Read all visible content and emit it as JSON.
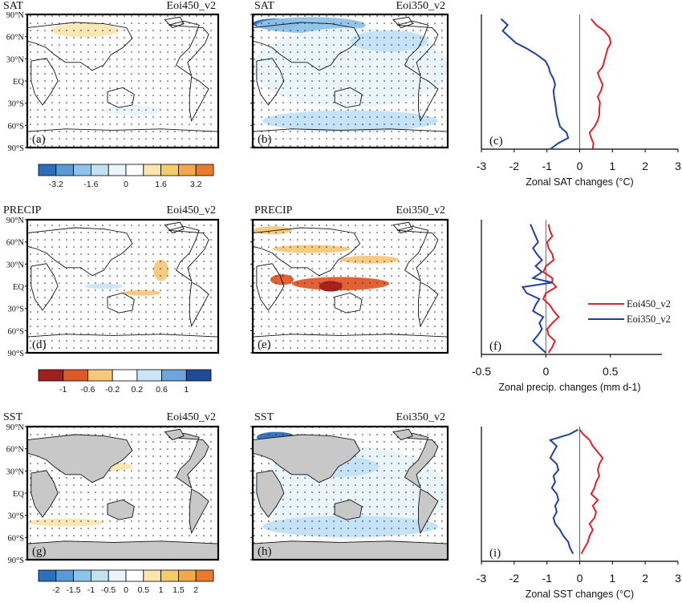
{
  "panels": [
    {
      "id": "a",
      "label": "(a)",
      "variable": "SAT",
      "experiment": "Eoi450_v2"
    },
    {
      "id": "b",
      "label": "(b)",
      "variable": "SAT",
      "experiment": "Eoi350_v2"
    },
    {
      "id": "d",
      "label": "(d)",
      "variable": "PRECIP",
      "experiment": "Eoi450_v2"
    },
    {
      "id": "e",
      "label": "(e)",
      "variable": "PRECIP",
      "experiment": "Eoi350_v2"
    },
    {
      "id": "g",
      "label": "(g)",
      "variable": "SST",
      "experiment": "Eoi450_v2"
    },
    {
      "id": "h",
      "label": "(h)",
      "variable": "SST",
      "experiment": "Eoi350_v2"
    }
  ],
  "latitude_ticks": [
    "90°N",
    "60°N",
    "30°N",
    "EQ",
    "30°S",
    "60°S",
    "90°S"
  ],
  "colorbars": [
    {
      "name": "sat",
      "labels": [
        "-3.2",
        "-1.6",
        "0",
        "1.6",
        "3.2"
      ],
      "colors": [
        "#2c6fbb",
        "#5b9bd5",
        "#8ec3ea",
        "#c3e0f5",
        "#e9f4fb",
        "#ffffff",
        "#fbe6b0",
        "#f6cc6a",
        "#f2a94a",
        "#ea7a2e"
      ]
    },
    {
      "name": "precip",
      "labels": [
        "-1",
        "-0.6",
        "-0.2",
        "0.2",
        "0.6",
        "1"
      ],
      "colors": [
        "#a31e1e",
        "#e0582a",
        "#f7c77a",
        "#ffffff",
        "#cbe4f6",
        "#6ea6dc",
        "#1f4a9c"
      ]
    },
    {
      "name": "sst",
      "labels": [
        "-2",
        "-1.5",
        "-1",
        "-0.5",
        "0",
        "0.5",
        "1",
        "1.5",
        "2"
      ],
      "colors": [
        "#2c6fbb",
        "#5b9bd5",
        "#8ec3ea",
        "#c3e0f5",
        "#e9f4fb",
        "#ffffff",
        "#fbe6b0",
        "#f6cc6a",
        "#f2a94a",
        "#ea7a2e"
      ]
    }
  ],
  "legend": {
    "entries": [
      {
        "name": "Eoi450_v2",
        "color": "#e0202a"
      },
      {
        "name": "Eoi350_v2",
        "color": "#2040a0"
      }
    ]
  },
  "chart_data": [
    {
      "type": "line",
      "panel": "(c)",
      "xlabel": "Zonal SAT changes (°C)",
      "ylabel": "",
      "xlim": [
        -3,
        3
      ],
      "ylim": [
        -90,
        90
      ],
      "xticks": [
        "-3",
        "-2",
        "-1",
        "0",
        "1",
        "2",
        "3"
      ],
      "series": [
        {
          "name": "Eoi450_v2",
          "color": "#e0202a",
          "x": [
            0.4,
            0.42,
            0.35,
            0.3,
            0.45,
            0.55,
            0.6,
            0.6,
            0.62,
            0.55,
            0.65,
            0.7,
            0.62,
            0.55,
            0.7,
            0.75,
            0.8,
            0.85,
            0.95,
            0.9,
            0.75,
            0.5,
            0.35
          ],
          "y": [
            -90,
            -82,
            -75,
            -68,
            -60,
            -52,
            -44,
            -36,
            -28,
            -20,
            -12,
            -4,
            4,
            12,
            20,
            28,
            36,
            44,
            52,
            60,
            68,
            76,
            84
          ]
        },
        {
          "name": "Eoi350_v2",
          "color": "#2040a0",
          "x": [
            -0.9,
            -0.65,
            -0.35,
            -0.4,
            -0.6,
            -0.65,
            -0.7,
            -0.72,
            -0.75,
            -0.78,
            -0.8,
            -0.75,
            -0.8,
            -0.9,
            -0.95,
            -1.05,
            -1.3,
            -1.6,
            -1.95,
            -2.15,
            -2.35,
            -2.2,
            -2.4
          ],
          "y": [
            -90,
            -82,
            -75,
            -68,
            -60,
            -52,
            -44,
            -36,
            -28,
            -20,
            -12,
            -4,
            4,
            12,
            20,
            28,
            36,
            44,
            52,
            60,
            68,
            76,
            84
          ]
        }
      ]
    },
    {
      "type": "line",
      "panel": "(f)",
      "xlabel": "Zonal precip. changes (mm d-1)",
      "ylabel": "",
      "xlim": [
        -0.5,
        0.9
      ],
      "ylim": [
        -90,
        90
      ],
      "xticks": [
        "-0.5",
        "0",
        "0.5"
      ],
      "series": [
        {
          "name": "Eoi450_v2",
          "color": "#e0202a",
          "x": [
            0.02,
            0.05,
            0.07,
            0.02,
            0.01,
            0.05,
            0.1,
            0.06,
            0.03,
            -0.02,
            0.0,
            0.08,
            0.05,
            0.05,
            -0.02,
            0.0,
            0.06,
            0.05,
            0.02,
            0.01,
            0.05,
            0.03,
            0.02
          ],
          "y": [
            -88,
            -80,
            -72,
            -64,
            -56,
            -48,
            -40,
            -32,
            -24,
            -16,
            -8,
            0,
            6,
            12,
            20,
            28,
            36,
            44,
            52,
            60,
            68,
            76,
            84
          ]
        },
        {
          "name": "Eoi350_v2",
          "color": "#2040a0",
          "x": [
            0.0,
            -0.05,
            -0.1,
            -0.06,
            -0.03,
            -0.05,
            -0.02,
            -0.1,
            -0.08,
            -0.05,
            -0.15,
            -0.18,
            0.05,
            -0.1,
            -0.03,
            -0.08,
            -0.03,
            -0.07,
            -0.1,
            -0.06,
            -0.08,
            -0.1,
            -0.12
          ],
          "y": [
            -88,
            -80,
            -72,
            -64,
            -56,
            -48,
            -40,
            -32,
            -24,
            -16,
            -8,
            0,
            6,
            12,
            20,
            28,
            36,
            44,
            52,
            60,
            68,
            76,
            84
          ]
        }
      ]
    },
    {
      "type": "line",
      "panel": "(i)",
      "xlabel": "Zonal SST changes (°C)",
      "ylabel": "",
      "xlim": [
        -3,
        3
      ],
      "ylim": [
        -90,
        90
      ],
      "xticks": [
        "-3",
        "-2",
        "-1",
        "0",
        "1",
        "2",
        "3"
      ],
      "series": [
        {
          "name": "Eoi450_v2",
          "color": "#e0202a",
          "x": [
            0.05,
            0.15,
            0.25,
            0.3,
            0.4,
            0.3,
            0.45,
            0.5,
            0.4,
            0.55,
            0.35,
            0.45,
            0.5,
            0.6,
            0.55,
            0.6,
            0.7,
            0.55,
            0.4,
            0.3,
            0.1,
            0.0
          ],
          "y": [
            -80,
            -72,
            -64,
            -56,
            -48,
            -40,
            -32,
            -24,
            -16,
            -8,
            0,
            8,
            16,
            24,
            32,
            40,
            48,
            56,
            64,
            72,
            80,
            86
          ]
        },
        {
          "name": "Eoi350_v2",
          "color": "#2040a0",
          "x": [
            -0.2,
            -0.3,
            -0.35,
            -0.5,
            -0.6,
            -0.75,
            -0.8,
            -0.7,
            -0.75,
            -0.65,
            -0.7,
            -0.85,
            -0.75,
            -0.8,
            -0.65,
            -0.7,
            -0.9,
            -0.8,
            -0.7,
            -0.9,
            -0.3,
            -0.05
          ],
          "y": [
            -80,
            -72,
            -64,
            -56,
            -48,
            -40,
            -32,
            -24,
            -16,
            -8,
            0,
            8,
            16,
            24,
            32,
            40,
            48,
            56,
            64,
            72,
            80,
            86
          ]
        }
      ]
    }
  ]
}
